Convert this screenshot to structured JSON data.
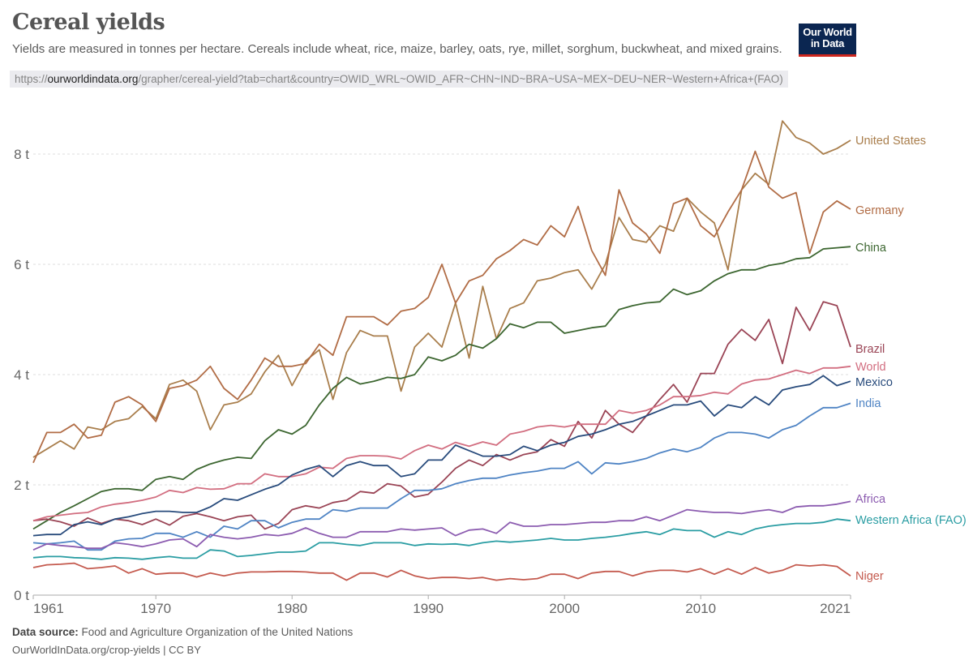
{
  "header": {
    "title": "Cereal yields",
    "subtitle": "Yields are measured in tonnes per hectare. Cereals include wheat, rice, maize, barley, oats, rye, millet, sorghum, buckwheat, and mixed grains.",
    "url_prefix": "https://",
    "url_domain": "ourworldindata.org",
    "url_path": "/grapher/cereal-yield?tab=chart&country=OWID_WRL~OWID_AFR~CHN~IND~BRA~USA~MEX~DEU~NER~Western+Africa+(FAO)",
    "logo_line1": "Our World",
    "logo_line2": "in Data"
  },
  "footer": {
    "source_label": "Data source:",
    "source_text": " Food and Agriculture Organization of the United Nations",
    "credit": "OurWorldInData.org/crop-yields | CC BY"
  },
  "chart_data": {
    "type": "line",
    "title": "Cereal yields",
    "xlabel": "",
    "ylabel": "",
    "x_start": 1961,
    "x_end": 2021,
    "xlim": [
      1961,
      2021
    ],
    "ylim": [
      0,
      8.6
    ],
    "x_ticks": [
      1961,
      1970,
      1980,
      1990,
      2000,
      2010,
      2021
    ],
    "x_tick_labels": [
      "1961",
      "1970",
      "1980",
      "1990",
      "2000",
      "2010",
      "2021"
    ],
    "y_ticks": [
      0,
      2,
      4,
      6,
      8
    ],
    "y_tick_labels": [
      "0 t",
      "2 t",
      "4 t",
      "6 t",
      "8 t"
    ],
    "grid": "horizontal dotted",
    "legend": "labels at line ends (right)",
    "series": [
      {
        "name": "United States",
        "color": "#a97e4c",
        "values": [
          2.5,
          2.65,
          2.8,
          2.65,
          3.05,
          3.0,
          3.15,
          3.2,
          3.42,
          3.2,
          3.82,
          3.9,
          3.7,
          3.0,
          3.45,
          3.5,
          3.65,
          4.05,
          4.35,
          3.8,
          4.25,
          4.45,
          3.55,
          4.4,
          4.8,
          4.7,
          4.7,
          3.7,
          4.5,
          4.75,
          4.5,
          5.3,
          4.3,
          5.6,
          4.65,
          5.2,
          5.3,
          5.7,
          5.75,
          5.85,
          5.9,
          5.55,
          6.0,
          6.85,
          6.45,
          6.4,
          6.7,
          6.6,
          7.2,
          6.95,
          6.75,
          5.9,
          7.35,
          7.65,
          7.45,
          8.6,
          8.3,
          8.2,
          8.0,
          8.1,
          8.25
        ]
      },
      {
        "name": "Germany",
        "color": "#b16c45",
        "values": [
          2.4,
          2.95,
          2.95,
          3.1,
          2.85,
          2.9,
          3.5,
          3.6,
          3.45,
          3.15,
          3.75,
          3.8,
          3.9,
          4.15,
          3.75,
          3.55,
          3.9,
          4.3,
          4.15,
          4.15,
          4.2,
          4.55,
          4.35,
          5.05,
          5.05,
          5.05,
          4.9,
          5.15,
          5.2,
          5.4,
          6.0,
          5.3,
          5.7,
          5.8,
          6.1,
          6.25,
          6.45,
          6.35,
          6.7,
          6.5,
          7.05,
          6.25,
          5.8,
          7.35,
          6.75,
          6.55,
          6.2,
          7.1,
          7.2,
          6.7,
          6.5,
          6.95,
          7.35,
          8.05,
          7.4,
          7.2,
          7.3,
          6.2,
          6.95,
          7.15,
          7.0
        ]
      },
      {
        "name": "China",
        "color": "#3c6630",
        "values": [
          1.2,
          1.35,
          1.5,
          1.62,
          1.75,
          1.88,
          1.93,
          1.93,
          1.9,
          2.1,
          2.15,
          2.1,
          2.28,
          2.38,
          2.45,
          2.5,
          2.48,
          2.8,
          3.0,
          2.92,
          3.08,
          3.45,
          3.75,
          3.95,
          3.83,
          3.88,
          3.95,
          3.93,
          4.0,
          4.32,
          4.25,
          4.35,
          4.55,
          4.48,
          4.65,
          4.92,
          4.85,
          4.95,
          4.95,
          4.75,
          4.8,
          4.85,
          4.88,
          5.18,
          5.25,
          5.3,
          5.32,
          5.55,
          5.45,
          5.52,
          5.7,
          5.83,
          5.9,
          5.9,
          5.98,
          6.02,
          6.1,
          6.12,
          6.28,
          6.3,
          6.32
        ]
      },
      {
        "name": "Brazil",
        "color": "#9a4455",
        "values": [
          1.35,
          1.38,
          1.33,
          1.25,
          1.4,
          1.3,
          1.38,
          1.35,
          1.28,
          1.38,
          1.27,
          1.43,
          1.48,
          1.42,
          1.35,
          1.42,
          1.45,
          1.2,
          1.3,
          1.55,
          1.62,
          1.58,
          1.68,
          1.72,
          1.88,
          1.85,
          2.02,
          1.98,
          1.78,
          1.83,
          2.05,
          2.3,
          2.45,
          2.35,
          2.55,
          2.45,
          2.55,
          2.6,
          2.82,
          2.7,
          3.15,
          2.85,
          3.35,
          3.1,
          2.95,
          3.25,
          3.55,
          3.82,
          3.5,
          4.02,
          4.02,
          4.55,
          4.82,
          4.62,
          5.0,
          4.2,
          5.22,
          4.8,
          5.32,
          5.25,
          4.5
        ]
      },
      {
        "name": "World",
        "color": "#d26e80",
        "values": [
          1.35,
          1.42,
          1.45,
          1.48,
          1.5,
          1.6,
          1.65,
          1.68,
          1.72,
          1.78,
          1.9,
          1.86,
          1.95,
          1.92,
          1.93,
          2.02,
          2.02,
          2.2,
          2.15,
          2.15,
          2.2,
          2.32,
          2.3,
          2.48,
          2.53,
          2.53,
          2.52,
          2.47,
          2.62,
          2.72,
          2.65,
          2.77,
          2.7,
          2.78,
          2.72,
          2.92,
          2.97,
          3.05,
          3.08,
          3.05,
          3.1,
          3.1,
          3.1,
          3.35,
          3.3,
          3.35,
          3.45,
          3.6,
          3.6,
          3.62,
          3.68,
          3.65,
          3.83,
          3.9,
          3.92,
          4.0,
          4.08,
          4.02,
          4.12,
          4.12,
          4.15
        ]
      },
      {
        "name": "Mexico",
        "color": "#284b7c",
        "values": [
          1.08,
          1.1,
          1.1,
          1.28,
          1.33,
          1.28,
          1.38,
          1.42,
          1.48,
          1.52,
          1.52,
          1.5,
          1.5,
          1.6,
          1.75,
          1.72,
          1.82,
          1.92,
          2.0,
          2.18,
          2.28,
          2.35,
          2.15,
          2.35,
          2.42,
          2.35,
          2.35,
          2.15,
          2.2,
          2.45,
          2.45,
          2.72,
          2.62,
          2.52,
          2.52,
          2.55,
          2.7,
          2.62,
          2.72,
          2.77,
          2.88,
          2.92,
          3.0,
          3.1,
          3.15,
          3.25,
          3.35,
          3.45,
          3.45,
          3.52,
          3.25,
          3.45,
          3.4,
          3.6,
          3.45,
          3.72,
          3.78,
          3.82,
          3.98,
          3.8,
          3.88
        ]
      },
      {
        "name": "India",
        "color": "#4f84c4",
        "values": [
          0.95,
          0.93,
          0.95,
          0.98,
          0.82,
          0.82,
          0.98,
          1.02,
          1.03,
          1.12,
          1.12,
          1.05,
          1.15,
          1.05,
          1.25,
          1.2,
          1.35,
          1.35,
          1.22,
          1.32,
          1.38,
          1.38,
          1.55,
          1.52,
          1.58,
          1.58,
          1.58,
          1.75,
          1.9,
          1.9,
          1.93,
          2.02,
          2.08,
          2.12,
          2.12,
          2.18,
          2.22,
          2.25,
          2.3,
          2.3,
          2.42,
          2.2,
          2.4,
          2.38,
          2.42,
          2.48,
          2.58,
          2.65,
          2.6,
          2.68,
          2.85,
          2.95,
          2.95,
          2.92,
          2.85,
          3.0,
          3.08,
          3.25,
          3.4,
          3.4,
          3.48
        ]
      },
      {
        "name": "Africa",
        "color": "#8c5cb0",
        "values": [
          0.82,
          0.93,
          0.9,
          0.88,
          0.85,
          0.85,
          0.95,
          0.92,
          0.88,
          0.93,
          1.0,
          1.02,
          0.88,
          1.1,
          1.05,
          1.02,
          1.05,
          1.1,
          1.08,
          1.12,
          1.22,
          1.12,
          1.05,
          1.05,
          1.15,
          1.15,
          1.15,
          1.2,
          1.18,
          1.2,
          1.22,
          1.08,
          1.18,
          1.2,
          1.12,
          1.32,
          1.25,
          1.25,
          1.28,
          1.28,
          1.3,
          1.32,
          1.32,
          1.35,
          1.35,
          1.42,
          1.35,
          1.45,
          1.55,
          1.52,
          1.5,
          1.5,
          1.48,
          1.52,
          1.55,
          1.5,
          1.6,
          1.62,
          1.62,
          1.65,
          1.7
        ]
      },
      {
        "name": "Western Africa (FAO)",
        "color": "#2a9da3",
        "values": [
          0.68,
          0.7,
          0.7,
          0.68,
          0.67,
          0.65,
          0.68,
          0.67,
          0.65,
          0.68,
          0.7,
          0.67,
          0.67,
          0.82,
          0.8,
          0.7,
          0.72,
          0.75,
          0.78,
          0.78,
          0.8,
          0.95,
          0.95,
          0.92,
          0.9,
          0.95,
          0.95,
          0.95,
          0.9,
          0.93,
          0.92,
          0.93,
          0.9,
          0.95,
          0.98,
          0.96,
          0.98,
          1.0,
          1.03,
          1.0,
          1.0,
          1.03,
          1.05,
          1.08,
          1.12,
          1.15,
          1.1,
          1.2,
          1.17,
          1.17,
          1.05,
          1.15,
          1.1,
          1.2,
          1.25,
          1.28,
          1.3,
          1.3,
          1.32,
          1.38,
          1.35
        ]
      },
      {
        "name": "Niger",
        "color": "#c45a4e",
        "values": [
          0.5,
          0.55,
          0.56,
          0.58,
          0.48,
          0.5,
          0.53,
          0.4,
          0.48,
          0.38,
          0.4,
          0.4,
          0.33,
          0.4,
          0.35,
          0.4,
          0.42,
          0.42,
          0.43,
          0.43,
          0.42,
          0.4,
          0.4,
          0.27,
          0.4,
          0.4,
          0.33,
          0.45,
          0.35,
          0.3,
          0.32,
          0.32,
          0.3,
          0.32,
          0.27,
          0.3,
          0.28,
          0.3,
          0.38,
          0.38,
          0.3,
          0.4,
          0.43,
          0.43,
          0.35,
          0.42,
          0.45,
          0.45,
          0.42,
          0.48,
          0.38,
          0.48,
          0.38,
          0.5,
          0.4,
          0.45,
          0.55,
          0.53,
          0.55,
          0.52,
          0.35
        ]
      }
    ]
  }
}
